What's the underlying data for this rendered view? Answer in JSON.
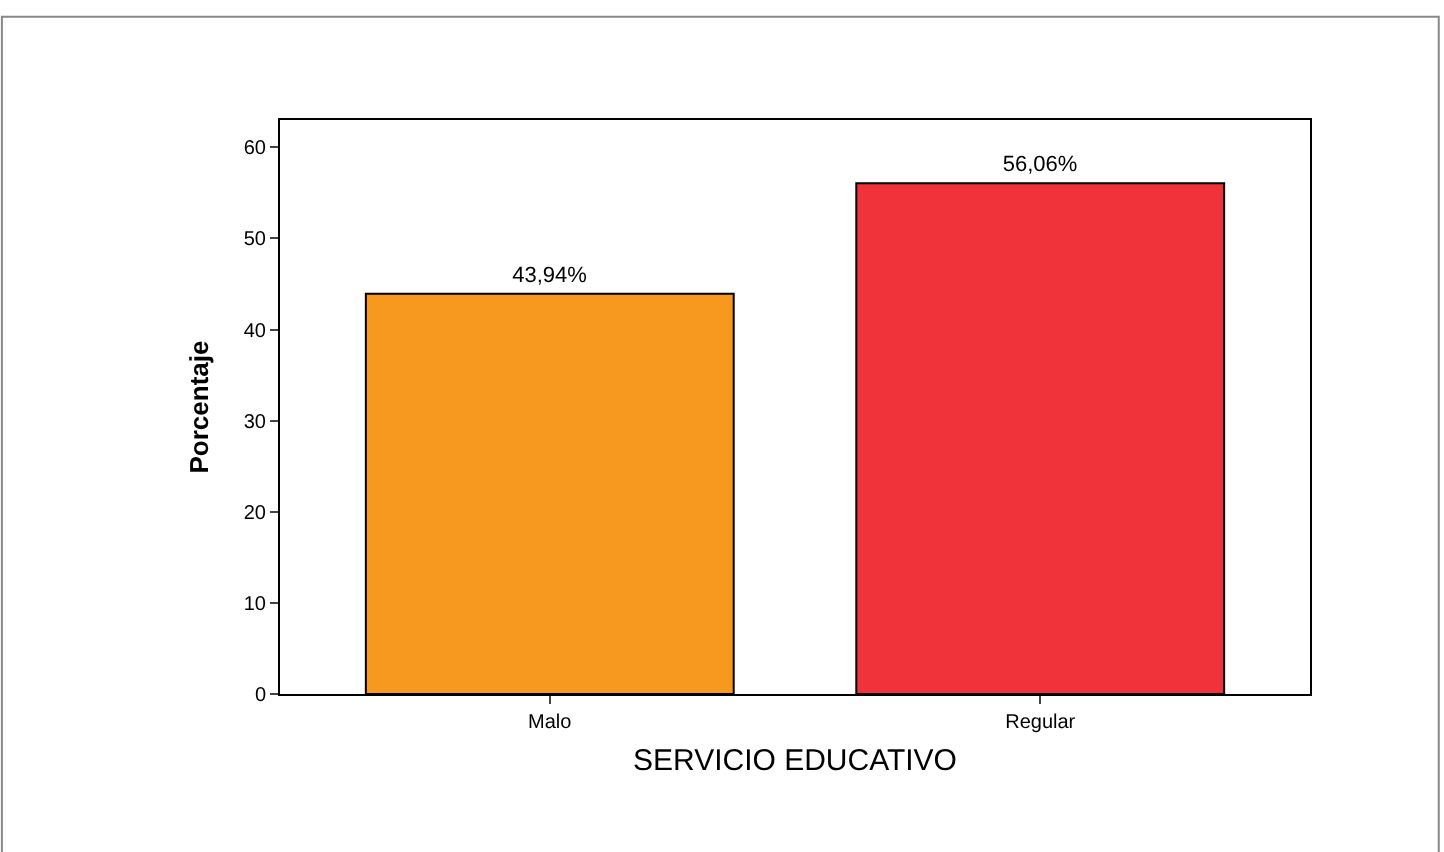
{
  "chart_data": {
    "type": "bar",
    "xlabel": "SERVICIO EDUCATIVO",
    "ylabel": "Porcentaje",
    "categories": [
      "Malo",
      "Regular"
    ],
    "values": [
      43.94,
      56.06
    ],
    "colors": [
      "#f7991f",
      "#f0323a"
    ],
    "value_labels": [
      "43,94%",
      "56,06%"
    ],
    "ylim": [
      0,
      63
    ],
    "yticks": [
      0,
      10,
      20,
      30,
      40,
      50,
      60
    ],
    "grid": false,
    "legend": false
  }
}
